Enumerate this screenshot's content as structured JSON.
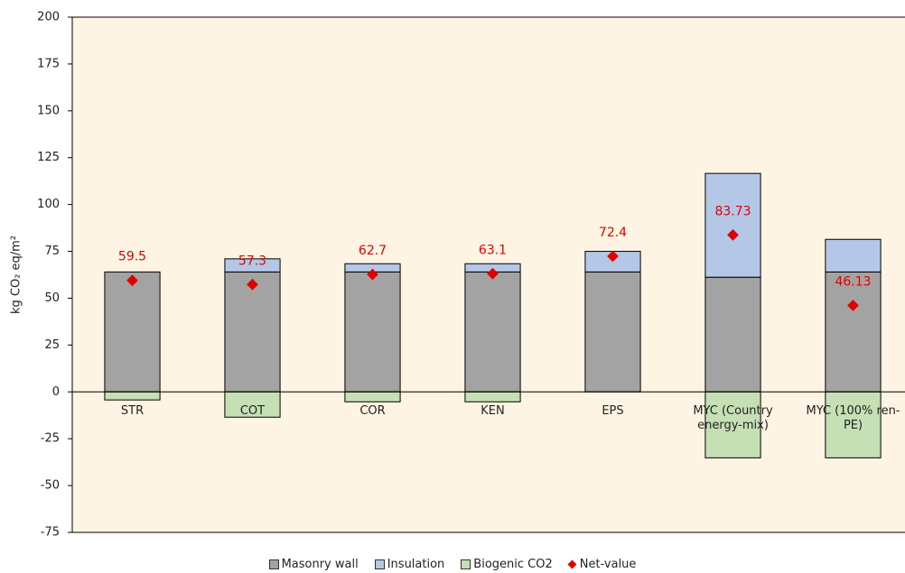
{
  "chart_data": {
    "type": "stacked_bar",
    "ylabel": "kg CO₂ eq/m²",
    "categories": [
      "STR",
      "COT",
      "COR",
      "KEN",
      "EPS",
      "MYC (Country energy-mix)",
      "MYC (100% ren-PE)"
    ],
    "series": [
      {
        "name": "Masonry wall",
        "color": "#a3a3a3",
        "values": [
          64,
          64,
          64,
          64,
          64,
          61.2,
          64
        ]
      },
      {
        "name": "Insulation",
        "color": "#b4c7e7",
        "values": [
          0,
          7,
          4.4,
          4.4,
          11,
          55.4,
          17.4
        ]
      },
      {
        "name": "Biogenic CO2",
        "color": "#c5e0b4",
        "values": [
          -4.3,
          -13.5,
          -5.3,
          -5.3,
          0,
          -35.2,
          -35.2
        ]
      },
      {
        "name": "Net-value",
        "color": "#e00000",
        "values": [
          59.5,
          57.3,
          62.7,
          63.1,
          72.4,
          83.73,
          46.13
        ]
      }
    ],
    "ylim": [
      -75,
      200
    ],
    "yticks": [
      -75,
      -50,
      -25,
      0,
      25,
      50,
      75,
      100,
      125,
      150,
      175,
      200
    ],
    "background": "#fef4e3"
  }
}
